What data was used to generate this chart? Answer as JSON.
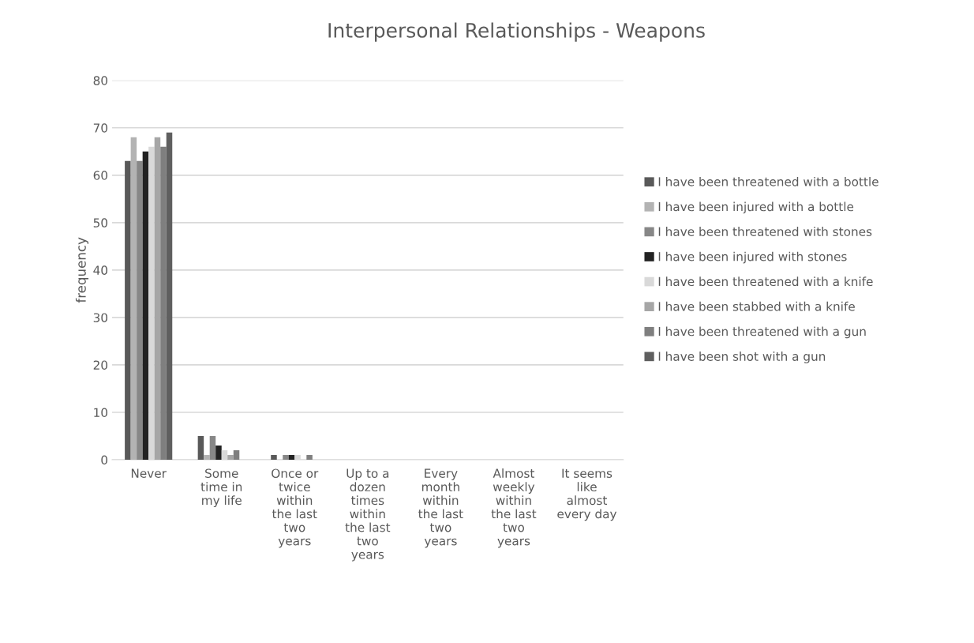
{
  "chart_data": {
    "type": "bar",
    "title": "Interpersonal Relationships - Weapons",
    "ylabel": "frequency",
    "categories": [
      "Never",
      "Some\ntime in\nmy life",
      "Once or\ntwice\nwithin\nthe last\ntwo\nyears",
      "Up to a\ndozen\ntimes\nwithin\nthe last\ntwo\nyears",
      "Every\nmonth\nwithin\nthe last\ntwo\nyears",
      "Almost\nweekly\nwithin\nthe last\ntwo\nyears",
      "It seems\nlike\nalmost\nevery day"
    ],
    "series": [
      {
        "name": "I have been threatened with a bottle",
        "color": "#595959",
        "values": [
          63,
          5,
          1,
          0,
          0,
          0,
          0
        ]
      },
      {
        "name": "I have been injured with a bottle",
        "color": "#b3b3b3",
        "values": [
          68,
          1,
          0,
          0,
          0,
          0,
          0
        ]
      },
      {
        "name": "I have been threatened with stones",
        "color": "#878787",
        "values": [
          63,
          5,
          1,
          0,
          0,
          0,
          0
        ]
      },
      {
        "name": "I have been injured with stones",
        "color": "#222222",
        "values": [
          65,
          3,
          1,
          0,
          0,
          0,
          0
        ]
      },
      {
        "name": "I have been threatened with a knife",
        "color": "#d9d9d9",
        "values": [
          66,
          2,
          1,
          0,
          0,
          0,
          0
        ]
      },
      {
        "name": "I have been stabbed with a knife",
        "color": "#a6a6a6",
        "values": [
          68,
          1,
          0,
          0,
          0,
          0,
          0
        ]
      },
      {
        "name": "I have been threatened with a gun",
        "color": "#7f7f7f",
        "values": [
          66,
          2,
          1,
          0,
          0,
          0,
          0
        ]
      },
      {
        "name": "I have been shot with a gun",
        "color": "#5f5f5f",
        "values": [
          69,
          0,
          0,
          0,
          0,
          0,
          0
        ]
      }
    ],
    "ylim": [
      0,
      80
    ],
    "yticks": [
      0,
      10,
      20,
      30,
      40,
      50,
      60,
      70,
      80
    ],
    "grid": "y",
    "legend": "right"
  }
}
